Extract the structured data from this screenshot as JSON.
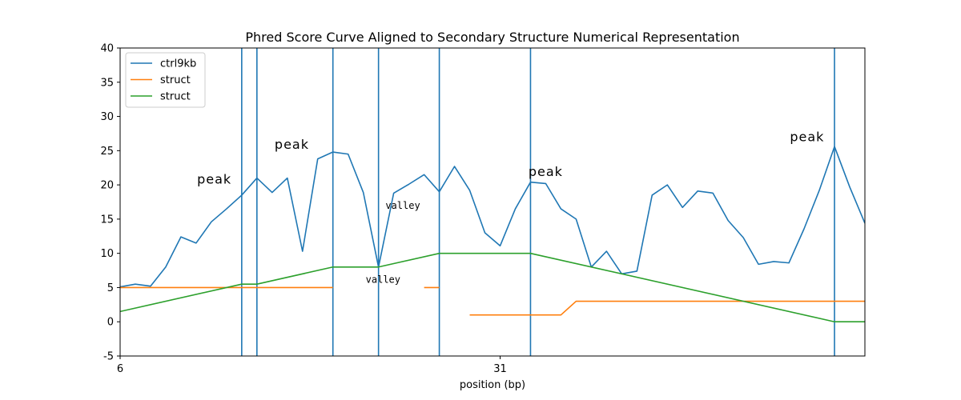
{
  "chart_data": {
    "type": "line",
    "title": "Phred Score Curve Aligned to Secondary Structure Numerical Representation",
    "xlabel": "position (bp)",
    "ylabel": "",
    "xlim": [
      6,
      55
    ],
    "ylim": [
      -5,
      40
    ],
    "xticks": [
      6,
      31
    ],
    "yticks": [
      -5,
      0,
      5,
      10,
      15,
      20,
      25,
      30,
      35,
      40
    ],
    "grid": false,
    "legend_position": "top-left",
    "colors": {
      "ctrl9kb": "#1f77b4",
      "struct_orange": "#ff7f0e",
      "struct_green": "#2ca02c"
    },
    "series": [
      {
        "name": "ctrl9kb",
        "color": "#1f77b4",
        "points": [
          [
            6,
            5.1
          ],
          [
            7,
            5.5
          ],
          [
            8,
            5.2
          ],
          [
            9,
            8.0
          ],
          [
            10,
            12.4
          ],
          [
            11,
            11.5
          ],
          [
            12,
            14.6
          ],
          [
            13,
            16.5
          ],
          [
            14,
            18.5
          ],
          [
            15,
            21.0
          ],
          [
            16,
            18.9
          ],
          [
            17,
            21.0
          ],
          [
            18,
            10.3
          ],
          [
            19,
            23.8
          ],
          [
            20,
            24.8
          ],
          [
            21,
            24.5
          ],
          [
            22,
            18.9
          ],
          [
            23,
            8.0
          ],
          [
            24,
            18.8
          ],
          [
            25,
            20.1
          ],
          [
            26,
            21.5
          ],
          [
            27,
            19.0
          ],
          [
            28,
            22.7
          ],
          [
            29,
            19.2
          ],
          [
            30,
            13.0
          ],
          [
            31,
            11.1
          ],
          [
            32,
            16.5
          ],
          [
            33,
            20.4
          ],
          [
            34,
            20.2
          ],
          [
            35,
            16.5
          ],
          [
            36,
            15.0
          ],
          [
            37,
            8.0
          ],
          [
            38,
            10.3
          ],
          [
            39,
            7.0
          ],
          [
            40,
            7.4
          ],
          [
            41,
            18.5
          ],
          [
            42,
            20.0
          ],
          [
            43,
            16.7
          ],
          [
            44,
            19.1
          ],
          [
            45,
            18.8
          ],
          [
            46,
            14.8
          ],
          [
            47,
            12.3
          ],
          [
            48,
            8.4
          ],
          [
            49,
            8.8
          ],
          [
            50,
            8.6
          ],
          [
            51,
            13.6
          ],
          [
            52,
            19.2
          ],
          [
            53,
            25.6
          ],
          [
            54,
            19.7
          ],
          [
            55,
            14.4
          ]
        ]
      },
      {
        "name": "struct",
        "color": "#ff7f0e",
        "segments": [
          [
            [
              6,
              5
            ],
            [
              20,
              5
            ]
          ],
          [
            [
              26,
              5
            ],
            [
              27,
              5
            ]
          ],
          [
            [
              29,
              1
            ],
            [
              35,
              1
            ],
            [
              36,
              3
            ],
            [
              55,
              3
            ]
          ]
        ]
      },
      {
        "name": "struct",
        "color": "#2ca02c",
        "points": [
          [
            6,
            1.5
          ],
          [
            14,
            5.5
          ],
          [
            15,
            5.5
          ],
          [
            20,
            8.0
          ],
          [
            23,
            8.0
          ],
          [
            27,
            10.0
          ],
          [
            33,
            10.0
          ],
          [
            53,
            0.0
          ],
          [
            55,
            0.0
          ]
        ]
      }
    ],
    "vlines": [
      14,
      15,
      20,
      23,
      27,
      33,
      53
    ],
    "annotations": [
      {
        "text": "peak",
        "x": 12.2,
        "y": 20.2,
        "style": "peak"
      },
      {
        "text": "peak",
        "x": 17.3,
        "y": 25.3,
        "style": "peak"
      },
      {
        "text": "valley",
        "x": 24.6,
        "y": 16.5,
        "style": "valley"
      },
      {
        "text": "valley",
        "x": 23.3,
        "y": 5.7,
        "style": "valley"
      },
      {
        "text": "peak",
        "x": 34.0,
        "y": 21.3,
        "style": "peak"
      },
      {
        "text": "peak",
        "x": 51.2,
        "y": 26.4,
        "style": "peak"
      }
    ]
  }
}
